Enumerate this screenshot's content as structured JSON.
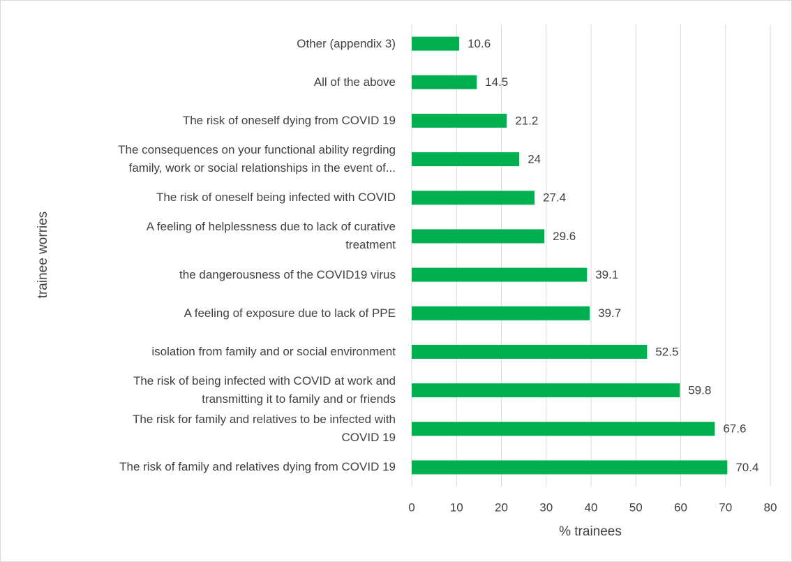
{
  "chart_data": {
    "type": "bar",
    "orientation": "horizontal",
    "x_label": "% trainees",
    "y_label": "trainee worries",
    "categories": [
      "Other (appendix 3)",
      "All of the above",
      "The risk of oneself dying from COVID 19",
      "The consequences on your functional ability regrding\nfamily, work or social relationships in the event of...",
      "The risk of oneself being infected with COVID",
      "A feeling of helplessness due to lack of curative\ntreatment",
      "the dangerousness of the COVID19 virus",
      "A feeling of exposure due to lack of PPE",
      "isolation from family and or social environment",
      "The risk of being infected with COVID at work and\ntransmitting it to family and or friends",
      "The risk for family and relatives to be infected with\nCOVID 19",
      "The risk of family and relatives dying from COVID 19"
    ],
    "values": [
      10.6,
      14.5,
      21.2,
      24,
      27.4,
      29.6,
      39.1,
      39.7,
      52.5,
      59.8,
      67.6,
      70.4
    ],
    "color": "#00b050",
    "xlim": [
      0,
      80
    ],
    "xticks": [
      0,
      10,
      20,
      30,
      40,
      50,
      60,
      70,
      80
    ],
    "grid": true
  }
}
